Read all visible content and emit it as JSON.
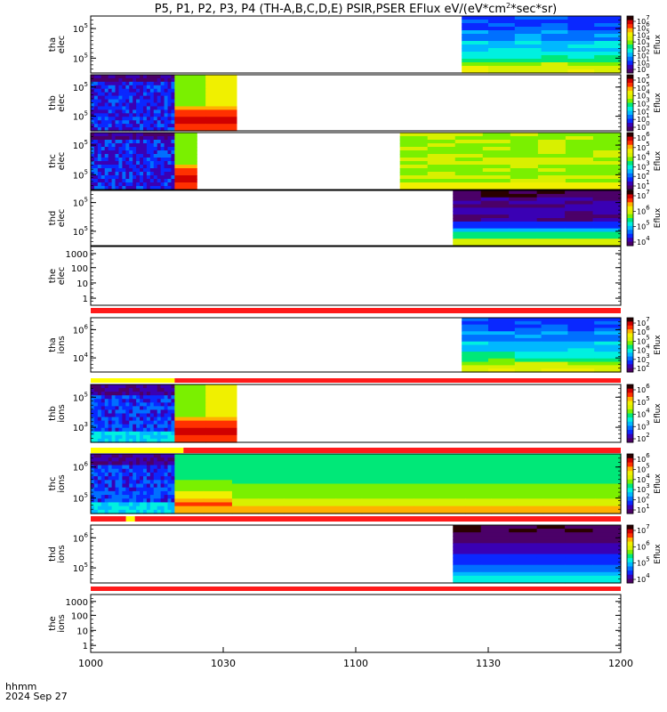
{
  "title": "P5, P1, P2, P3, P4 (TH-A,B,C,D,E) PSIR,PSER EFlux eV/(eV*cm",
  "title_sup": "2",
  "title_tail": "*sec*sr)",
  "footer": {
    "hhmm": "hhmm",
    "date": "2024 Sep 27"
  },
  "colors": {
    "scale": [
      "#4b0068",
      "#3a00b4",
      "#0a28ff",
      "#0070ff",
      "#00b8ff",
      "#00f0e0",
      "#00e878",
      "#7af000",
      "#d8f000",
      "#f0f000",
      "#ffb000",
      "#ff3000",
      "#d00000",
      "#2a0000"
    ],
    "bar_red": "#ff1a1a",
    "bar_yellow": "#ffff00"
  },
  "chart_data": {
    "type": "heatmap",
    "xlim": [
      "10:00",
      "12:00"
    ],
    "x_ticks": [
      "1000",
      "1030",
      "1100",
      "1130",
      "1200"
    ],
    "panels": [
      {
        "id": "tha-elec",
        "label_lines": [
          "tha",
          "elec"
        ],
        "kind": "spectrogram",
        "y_ticks": [
          "10^5",
          "10^5"
        ],
        "colorbar": {
          "label": "Eflux",
          "ticks": [
            "10^7",
            "10^6",
            "10^5",
            "10^4",
            "10^3",
            "10^2",
            "10^1",
            "10^0"
          ]
        },
        "blocks": [
          {
            "x0": "11:24",
            "x1": "12:00",
            "profile": "cold_rising"
          }
        ]
      },
      {
        "id": "thb-elec",
        "label_lines": [
          "thb",
          "elec"
        ],
        "kind": "spectrogram",
        "y_ticks": [
          "10^5",
          "10^5"
        ],
        "colorbar": {
          "label": "Eflux",
          "ticks": [
            "10^5",
            "10^5",
            "10^4",
            "10^3",
            "10^2",
            "10^1",
            "10^0"
          ]
        },
        "blocks": [
          {
            "x0": "10:00",
            "x1": "10:19",
            "profile": "noisy_blue"
          },
          {
            "x0": "10:19",
            "x1": "10:33",
            "profile": "hot_bottom"
          }
        ]
      },
      {
        "id": "thc-elec",
        "label_lines": [
          "thc",
          "elec"
        ],
        "kind": "spectrogram",
        "y_ticks": [
          "10^5",
          "10^5"
        ],
        "colorbar": {
          "label": "Eflux",
          "ticks": [
            "10^6",
            "10^5",
            "10^4",
            "10^3",
            "10^2",
            "10^1"
          ]
        },
        "blocks": [
          {
            "x0": "10:00",
            "x1": "10:19",
            "profile": "noisy_blue"
          },
          {
            "x0": "10:19",
            "x1": "10:24",
            "profile": "hot_bottom"
          },
          {
            "x0": "11:10",
            "x1": "12:00",
            "profile": "green_flat"
          }
        ]
      },
      {
        "id": "thd-elec",
        "label_lines": [
          "thd",
          "elec"
        ],
        "kind": "spectrogram",
        "y_ticks": [
          "10^5",
          "10^5"
        ],
        "colorbar": {
          "label": "Eflux",
          "ticks": [
            "10^7",
            "10^6",
            "10^5",
            "10^4"
          ]
        },
        "blocks": [
          {
            "x0": "11:22",
            "x1": "12:00",
            "profile": "purple_rising"
          }
        ]
      },
      {
        "id": "the-elec",
        "label_lines": [
          "the",
          "elec"
        ],
        "kind": "empty",
        "y_ticks": [
          "1000",
          "100",
          "10",
          "1"
        ],
        "bar": [
          {
            "x0": "10:00",
            "x1": "12:00",
            "color": "red"
          }
        ]
      },
      {
        "id": "tha-ions",
        "label_lines": [
          "tha",
          "ions"
        ],
        "kind": "spectrogram",
        "y_ticks": [
          "10^6",
          "10^4"
        ],
        "colorbar": {
          "label": "Eflux",
          "ticks": [
            "10^7",
            "10^6",
            "10^5",
            "10^4",
            "10^3",
            "10^2"
          ]
        },
        "blocks": [
          {
            "x0": "11:24",
            "x1": "12:00",
            "profile": "cold_rising"
          }
        ],
        "bar": [
          {
            "x0": "10:00",
            "x1": "10:19",
            "color": "yellow"
          },
          {
            "x0": "10:19",
            "x1": "12:00",
            "color": "red"
          }
        ]
      },
      {
        "id": "thb-ions",
        "label_lines": [
          "thb",
          "ions"
        ],
        "kind": "spectrogram",
        "y_ticks": [
          "10^5",
          "10^3"
        ],
        "colorbar": {
          "label": "Eflux",
          "ticks": [
            "10^6",
            "10^5",
            "10^4",
            "10^3",
            "10^2"
          ]
        },
        "blocks": [
          {
            "x0": "10:00",
            "x1": "10:19",
            "profile": "noisy_blue_ions"
          },
          {
            "x0": "10:19",
            "x1": "10:33",
            "profile": "hot_bottom"
          }
        ],
        "bar": [
          {
            "x0": "10:00",
            "x1": "10:21",
            "color": "yellow"
          },
          {
            "x0": "10:21",
            "x1": "12:00",
            "color": "red"
          }
        ]
      },
      {
        "id": "thc-ions",
        "label_lines": [
          "thc",
          "ions"
        ],
        "kind": "spectrogram",
        "y_ticks": [
          "10^6",
          "10^5"
        ],
        "colorbar": {
          "label": "Eflux",
          "ticks": [
            "10^6",
            "10^5",
            "10^4",
            "10^3",
            "10^2",
            "10^1"
          ]
        },
        "blocks": [
          {
            "x0": "10:00",
            "x1": "10:19",
            "profile": "noisy_blue_ions"
          },
          {
            "x0": "10:19",
            "x1": "10:32",
            "profile": "green_warm_bottom"
          },
          {
            "x0": "10:32",
            "x1": "12:00",
            "profile": "green_orange_bottom"
          }
        ],
        "bar": [
          {
            "x0": "10:00",
            "x1": "10:08",
            "color": "red"
          },
          {
            "x0": "10:08",
            "x1": "10:10",
            "color": "yellow"
          },
          {
            "x0": "10:10",
            "x1": "12:00",
            "color": "red"
          }
        ]
      },
      {
        "id": "thd-ions",
        "label_lines": [
          "thd",
          "ions"
        ],
        "kind": "spectrogram",
        "y_ticks": [
          "10^6",
          "10^5"
        ],
        "colorbar": {
          "label": "Eflux",
          "ticks": [
            "10^7",
            "10^6",
            "10^5",
            "10^4"
          ]
        },
        "blocks": [
          {
            "x0": "11:22",
            "x1": "12:00",
            "profile": "purple_rising_ions"
          }
        ],
        "bar": [
          {
            "x0": "10:00",
            "x1": "12:00",
            "color": "red"
          }
        ]
      },
      {
        "id": "the-ions",
        "label_lines": [
          "the",
          "ions"
        ],
        "kind": "empty",
        "y_ticks": [
          "1000",
          "100",
          "10",
          "1"
        ]
      }
    ]
  }
}
